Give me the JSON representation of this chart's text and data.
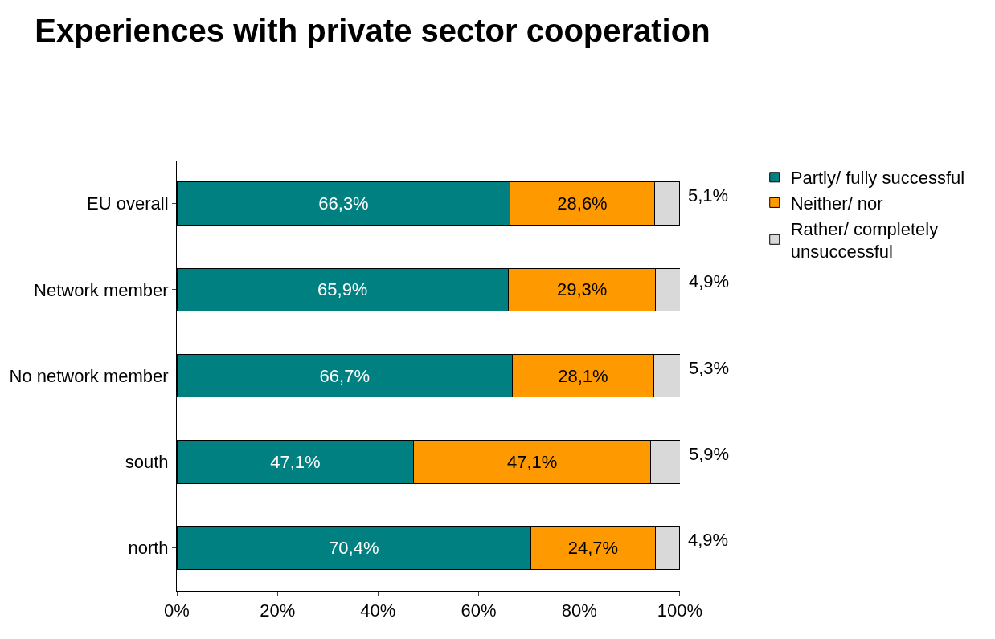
{
  "chart_data": {
    "type": "bar",
    "title": "Experiences with private sector cooperation",
    "orientation": "horizontal",
    "stacked": true,
    "categories": [
      "EU overall",
      "Network member",
      "No network member",
      "south",
      "north"
    ],
    "series": [
      {
        "name": "Partly/ fully successful",
        "color": "#008080",
        "values": [
          66.3,
          65.9,
          66.7,
          47.1,
          70.4
        ],
        "value_labels": [
          "66,3%",
          "65,9%",
          "66,7%",
          "47,1%",
          "70,4%"
        ]
      },
      {
        "name": "Neither/ nor",
        "color": "#ff9900",
        "values": [
          28.6,
          29.3,
          28.1,
          47.1,
          24.7
        ],
        "value_labels": [
          "28,6%",
          "29,3%",
          "28,1%",
          "47,1%",
          "24,7%"
        ]
      },
      {
        "name": "Rather/ completely unsuccessful",
        "color": "#d9d9d9",
        "values": [
          5.1,
          4.9,
          5.3,
          5.9,
          4.9
        ],
        "value_labels": [
          "5,1%",
          "4,9%",
          "5,3%",
          "5,9%",
          "4,9%"
        ]
      }
    ],
    "xlim": [
      0,
      100
    ],
    "xticks": [
      {
        "value": 0,
        "label": "0%"
      },
      {
        "value": 20,
        "label": "20%"
      },
      {
        "value": 40,
        "label": "40%"
      },
      {
        "value": 60,
        "label": "60%"
      },
      {
        "value": 80,
        "label": "80%"
      },
      {
        "value": 100,
        "label": "100%"
      }
    ],
    "legend": "top right"
  }
}
